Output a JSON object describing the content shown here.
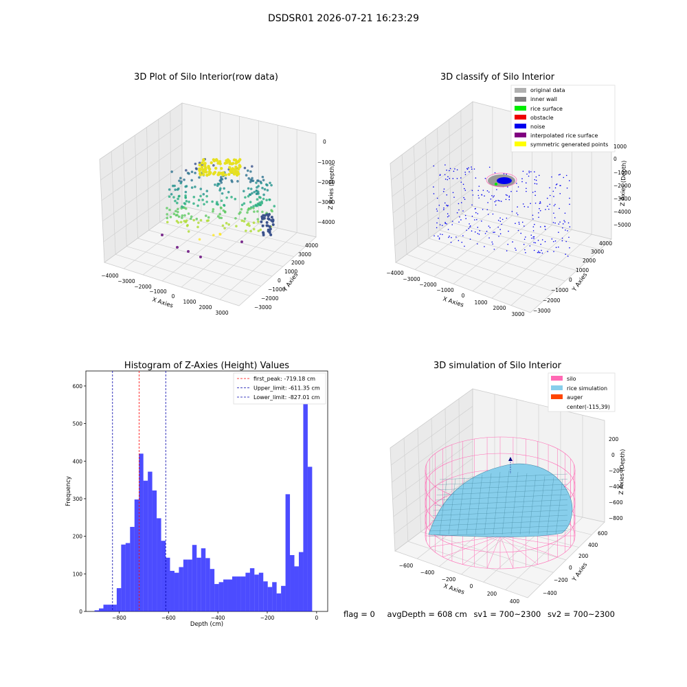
{
  "suptitle": "DSDSR01 2026-07-21 16:23:29",
  "panels": {
    "raw": {
      "title": "3D Plot of Silo Interior(row data)",
      "xlabel": "X Axies",
      "ylabel": "Y Axies",
      "zlabel": "Z Axies (Depth)",
      "xticks": [
        "−4000",
        "−3000",
        "−2000",
        "−1000",
        "0",
        "1000",
        "2000",
        "3000"
      ],
      "yticks": [
        "−3000",
        "−2000",
        "−1000",
        "0",
        "1000",
        "2000",
        "3000",
        "4000"
      ],
      "zticks": [
        "0",
        "−1000",
        "−2000",
        "−3000",
        "−4000"
      ]
    },
    "classify": {
      "title": "3D classify of Silo Interior",
      "xlabel": "X Axies",
      "ylabel": "Y Axies",
      "zlabel": "Z Axies (Depth)",
      "xticks": [
        "−4000",
        "−3000",
        "−2000",
        "−1000",
        "0",
        "1000",
        "2000",
        "3000"
      ],
      "yticks": [
        "−3000",
        "−2000",
        "−1000",
        "0",
        "1000",
        "2000",
        "3000",
        "4000"
      ],
      "zticks": [
        "1000",
        "0",
        "−1000",
        "−2000",
        "−3000",
        "−4000",
        "−5000"
      ],
      "legend": [
        {
          "label": "original data",
          "color": "#b0b0b0"
        },
        {
          "label": "inner wall",
          "color": "#808080"
        },
        {
          "label": "rice surface",
          "color": "#00ee00"
        },
        {
          "label": "obstacle",
          "color": "#ee0000"
        },
        {
          "label": "noise",
          "color": "#0000ee"
        },
        {
          "label": "interpolated rice surface",
          "color": "#800080"
        },
        {
          "label": "symmetric generated points",
          "color": "#ffff00"
        }
      ]
    },
    "sim": {
      "title": "3D simulation of Silo Interior",
      "xlabel": "X Axies",
      "ylabel": "Y Axies",
      "zlabel": "Z Axies (Depth)",
      "xticks": [
        "−600",
        "−400",
        "−200",
        "0",
        "200",
        "400"
      ],
      "yticks": [
        "−400",
        "−200",
        "0",
        "200",
        "400",
        "600"
      ],
      "zticks": [
        "200",
        "0",
        "−200",
        "−400",
        "−600",
        "−800"
      ],
      "legend": [
        {
          "label": "silo",
          "color": "#ff69b4"
        },
        {
          "label": "rice simulation",
          "color": "#87ceeb"
        },
        {
          "label": "auger",
          "color": "#ff4500"
        },
        {
          "label": "center(-115,39)",
          "color": ""
        }
      ]
    }
  },
  "status": {
    "flag": "flag = 0",
    "avg_depth": "avgDepth = 608 cm",
    "sv1": "sv1 = 700~2300",
    "sv2": "sv2 = 700~2300"
  },
  "chart_data": [
    {
      "type": "bar",
      "title": "Histogram of Z-Axies (Height) Values",
      "xlabel": "Depth (cm)",
      "ylabel": "Frequency",
      "xlim": [
        -935,
        45
      ],
      "ylim": [
        0,
        640
      ],
      "xticks": [
        -800,
        -600,
        -400,
        -200,
        0
      ],
      "yticks": [
        0,
        100,
        200,
        300,
        400,
        500,
        600
      ],
      "bin_start": -900,
      "bin_width": 18,
      "values": [
        3,
        8,
        18,
        18,
        18,
        62,
        178,
        182,
        225,
        298,
        420,
        348,
        372,
        322,
        248,
        188,
        143,
        108,
        103,
        118,
        138,
        138,
        177,
        143,
        168,
        142,
        113,
        73,
        78,
        85,
        85,
        93,
        93,
        93,
        103,
        115,
        98,
        103,
        80,
        65,
        78,
        48,
        68,
        312,
        150,
        120,
        158,
        620,
        385
      ],
      "color": "#0000ff",
      "vlines": [
        {
          "label": "first_peak: -719.18 cm",
          "x": -719.18,
          "color": "#ff0000"
        },
        {
          "label": "Upper_limit: -611.35 cm",
          "x": -611.35,
          "color": "#0000aa"
        },
        {
          "label": "Lower_limit: -827.01 cm",
          "x": -827.01,
          "color": "#0000aa"
        }
      ],
      "legend_position": "top-right"
    }
  ]
}
